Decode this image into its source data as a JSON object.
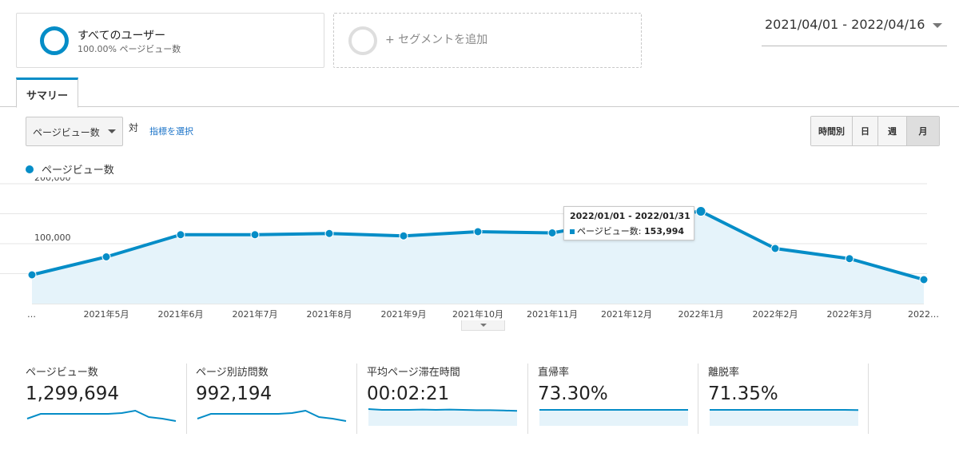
{
  "segments": {
    "primary": {
      "title": "すべてのユーザー",
      "subtitle": "100.00% ページビュー数"
    },
    "add_label": "+ セグメントを追加"
  },
  "date_range": "2021/04/01 - 2022/04/16",
  "tabs": [
    {
      "label": "サマリー",
      "active": true
    }
  ],
  "chart_controls": {
    "metric_select": "ページビュー数",
    "vs_label": "対",
    "select_metric_link": "指標を選択",
    "granularity": [
      "時間別",
      "日",
      "週",
      "月"
    ],
    "granularity_active": "月"
  },
  "chart_data": {
    "type": "area",
    "series": [
      {
        "name": "ページビュー数",
        "color": "#058dc7",
        "values": [
          48000,
          78000,
          115000,
          115000,
          117000,
          113000,
          120000,
          118000,
          140000,
          153994,
          92000,
          75000,
          40000
        ]
      }
    ],
    "x_labels": [
      "…",
      "2021年5月",
      "2021年6月",
      "2021年7月",
      "2021年8月",
      "2021年9月",
      "2021年10月",
      "2021年11月",
      "2021年12月",
      "2022年1月",
      "2022年2月",
      "2022年3月",
      "2022…"
    ],
    "y_ticks": [
      {
        "value": 100000,
        "label": "100,000"
      },
      {
        "value": 200000,
        "label": "200,000"
      }
    ],
    "ylim": [
      0,
      200000
    ],
    "grid": true,
    "tooltip": {
      "index": 9,
      "date": "2022/01/01 - 2022/01/31",
      "series_label": "ページビュー数",
      "value_text": "153,994"
    }
  },
  "scorecards": [
    {
      "label": "ページビュー数",
      "value": "1,299,694",
      "sparkline": [
        0.25,
        0.55,
        0.55,
        0.55,
        0.55,
        0.55,
        0.55,
        0.6,
        0.75,
        0.35,
        0.25,
        0.1
      ],
      "style": "line"
    },
    {
      "label": "ページ別訪問数",
      "value": "992,194",
      "sparkline": [
        0.25,
        0.55,
        0.55,
        0.55,
        0.55,
        0.55,
        0.55,
        0.6,
        0.75,
        0.35,
        0.25,
        0.1
      ],
      "style": "line"
    },
    {
      "label": "平均ページ滞在時間",
      "value": "00:02:21",
      "sparkline": [
        0.85,
        0.8,
        0.8,
        0.8,
        0.82,
        0.8,
        0.82,
        0.8,
        0.78,
        0.78,
        0.76,
        0.74
      ],
      "style": "area"
    },
    {
      "label": "直帰率",
      "value": "73.30%",
      "sparkline": [
        0.8,
        0.8,
        0.8,
        0.8,
        0.8,
        0.8,
        0.8,
        0.8,
        0.8,
        0.8,
        0.8,
        0.8
      ],
      "style": "area"
    },
    {
      "label": "離脱率",
      "value": "71.35%",
      "sparkline": [
        0.8,
        0.8,
        0.8,
        0.8,
        0.8,
        0.8,
        0.8,
        0.8,
        0.8,
        0.8,
        0.8,
        0.79
      ],
      "style": "area"
    }
  ]
}
